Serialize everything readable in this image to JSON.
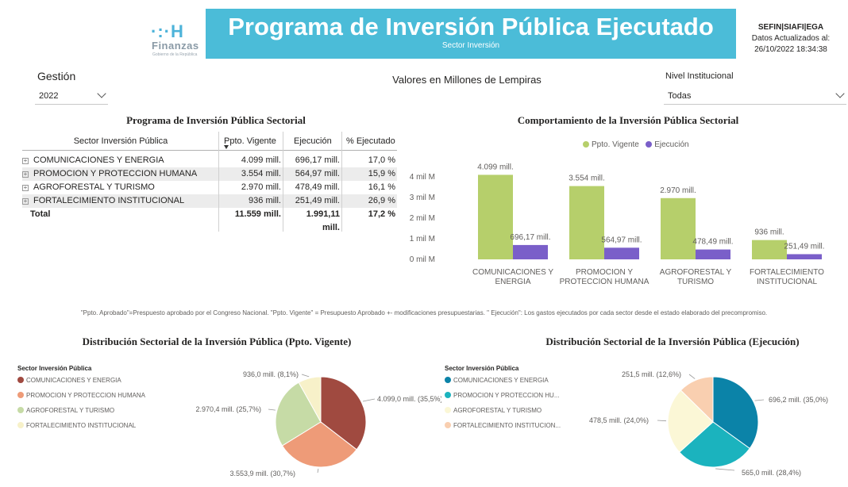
{
  "header": {
    "logo_mark": "·:·H",
    "logo_name": "Finanzas",
    "logo_sub": "Gobierno de la República",
    "title": "Programa de Inversión Pública Ejecutado",
    "subtitle": "Sector Inversión",
    "system": "SEFIN|SIAFI|EGA",
    "updated_label": "Datos Actualizados al:",
    "updated_value": "26/10/2022 18:34:38"
  },
  "filters": {
    "gestion": {
      "label": "Gestión",
      "value": "2022"
    },
    "units_note": "Valores en Millones de Lempiras",
    "nivel": {
      "label": "Nivel Institucional",
      "value": "Todas"
    }
  },
  "table": {
    "title": "Programa de Inversión Pública Sectorial",
    "columns": [
      "Sector Inversión Pública",
      "Ppto. Vigente",
      "Ejecución",
      "% Ejecutado"
    ],
    "rows": [
      {
        "sector": "COMUNICACIONES Y ENERGIA",
        "vigente": "4.099 mill.",
        "ejecucion": "696,17 mill.",
        "pct": "17,0 %"
      },
      {
        "sector": "PROMOCION Y PROTECCION HUMANA",
        "vigente": "3.554 mill.",
        "ejecucion": "564,97 mill.",
        "pct": "15,9 %"
      },
      {
        "sector": "AGROFORESTAL Y TURISMO",
        "vigente": "2.970 mill.",
        "ejecucion": "478,49 mill.",
        "pct": "16,1 %"
      },
      {
        "sector": "FORTALECIMIENTO INSTITUCIONAL",
        "vigente": "936 mill.",
        "ejecucion": "251,49 mill.",
        "pct": "26,9 %"
      }
    ],
    "total": {
      "label": "Total",
      "vigente": "11.559 mill.",
      "ejecucion_1": "1.991,11",
      "ejecucion_2": "mill.",
      "pct": "17,2 %"
    }
  },
  "colors": {
    "vigente_bar": "#b6cf6b",
    "ejecucion_bar": "#7a5fc9",
    "pie1": [
      "#a04a40",
      "#ee9b78",
      "#c6dba6",
      "#f7f1c9"
    ],
    "pie2": [
      "#0b83a8",
      "#1bb3be",
      "#fbf7d6",
      "#f9cfb0"
    ],
    "banner": "#4bbcd8"
  },
  "note": "\"Ppto. Aprobado\"=Prespuesto aprobado por el Congreso Nacional. \"Ppto. Vigente\" = Presupuesto Aprobado +- modificaciones presupuestarias. \" Ejecución\": Los gastos ejecutados por cada sector desde el estado elaborado del precompromiso.",
  "chart_data": [
    {
      "type": "bar",
      "title": "Comportamiento de la Inversión Pública Sectorial",
      "categories": [
        "COMUNICACIONES Y ENERGIA",
        "PROMOCION Y PROTECCION HUMANA",
        "AGROFORESTAL Y TURISMO",
        "FORTALECIMIENTO INSTITUCIONAL"
      ],
      "category_lines": [
        [
          "COMUNICACIONES Y",
          "ENERGIA"
        ],
        [
          "PROMOCION Y",
          "PROTECCION HUMANA"
        ],
        [
          "AGROFORESTAL Y",
          "TURISMO"
        ],
        [
          "FORTALECIMIENTO",
          "INSTITUCIONAL"
        ]
      ],
      "series": [
        {
          "name": "Ppto. Vigente",
          "values": [
            4099,
            3554,
            2970,
            936
          ],
          "labels": [
            "4.099 mill.",
            "3.554 mill.",
            "2.970 mill.",
            "936 mill."
          ]
        },
        {
          "name": "Ejecución",
          "values": [
            696.17,
            564.97,
            478.49,
            251.49
          ],
          "labels": [
            "696,17 mill.",
            "564,97 mill.",
            "478,49 mill.",
            "251,49 mill."
          ]
        }
      ],
      "ylim": [
        0,
        4000
      ],
      "yticks": [
        0,
        1000,
        2000,
        3000,
        4000
      ],
      "ytick_labels": [
        "0 mil M",
        "1 mil M",
        "2 mil M",
        "3 mil M",
        "4 mil M"
      ],
      "legend": "top-center"
    },
    {
      "type": "pie",
      "title": "Distribución Sectorial de la Inversión Pública (Ppto. Vigente)",
      "legend_title": "Sector Inversión Pública",
      "categories": [
        "COMUNICACIONES Y ENERGIA",
        "PROMOCION Y PROTECCION HUMANA",
        "AGROFORESTAL Y TURISMO",
        "FORTALECIMIENTO INSTITUCIONAL"
      ],
      "values": [
        4099.0,
        3553.9,
        2970.4,
        936.0
      ],
      "labels": [
        "4.099,0 mill. (35,5%)",
        "3.553,9 mill. (30,7%)",
        "2.970,4 mill. (25,7%)",
        "936,0 mill. (8,1%)"
      ],
      "legend": "left"
    },
    {
      "type": "pie",
      "title": "Distribución Sectorial de la Inversión Pública (Ejecución)",
      "legend_title": "Sector Inversión Pública",
      "categories": [
        "COMUNICACIONES Y ENERGIA",
        "PROMOCION Y PROTECCION HU...",
        "AGROFORESTAL Y TURISMO",
        "FORTALECIMIENTO INSTITUCION..."
      ],
      "values": [
        696.2,
        565.0,
        478.5,
        251.5
      ],
      "labels": [
        "696,2 mill. (35,0%)",
        "565,0 mill. (28,4%)",
        "478,5 mill. (24,0%)",
        "251,5 mill. (12,6%)"
      ],
      "legend": "left"
    }
  ]
}
